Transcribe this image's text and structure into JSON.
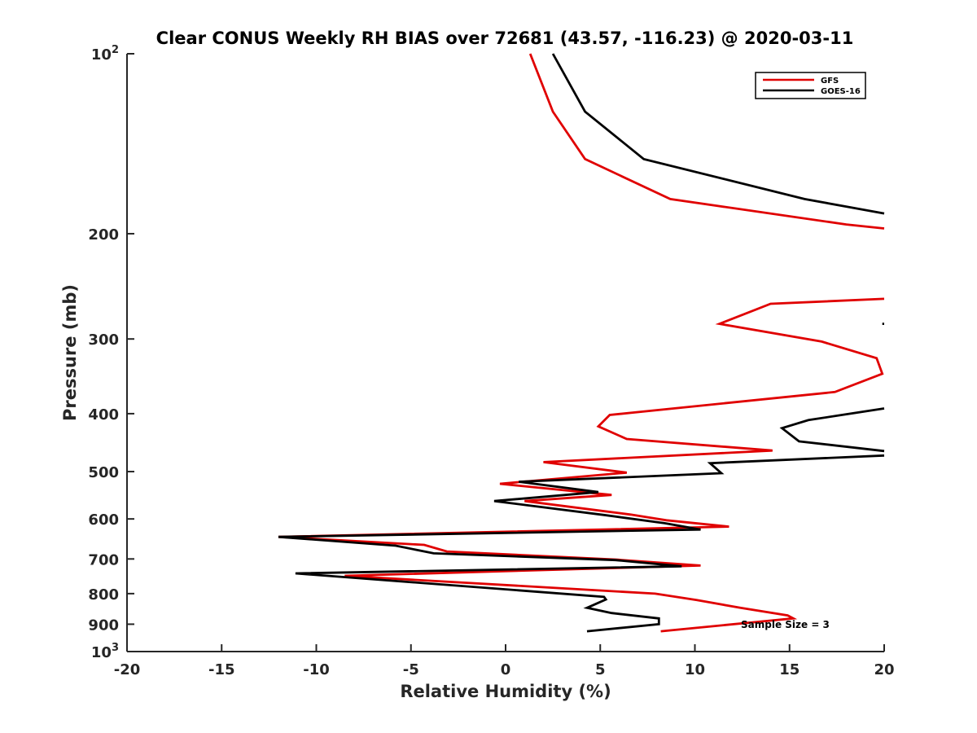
{
  "chart_data": {
    "type": "line",
    "title": "Clear CONUS Weekly RH BIAS over 72681 (43.57, -116.23) @ 2020-03-11",
    "xlabel": "Relative Humidity (%)",
    "ylabel": "Pressure (mb)",
    "xlim": [
      -20,
      20
    ],
    "ylim": [
      100,
      1000
    ],
    "y_scale": "log",
    "y_reversed": true,
    "x_ticks": [
      "-20",
      "-15",
      "-10",
      "-5",
      "0",
      "5",
      "10",
      "15",
      "20"
    ],
    "y_ticks": [
      {
        "value": 100,
        "base": "10",
        "exp": "2"
      },
      {
        "value": 200,
        "label": "200"
      },
      {
        "value": 300,
        "label": "300"
      },
      {
        "value": 400,
        "label": "400"
      },
      {
        "value": 500,
        "label": "500"
      },
      {
        "value": 600,
        "label": "600"
      },
      {
        "value": 700,
        "label": "700"
      },
      {
        "value": 800,
        "label": "800"
      },
      {
        "value": 900,
        "label": "900"
      },
      {
        "value": 1000,
        "base": "10",
        "exp": "3"
      }
    ],
    "grid": false,
    "legend_position": "top-right",
    "annotation": "Sample Size = 3",
    "series": [
      {
        "name": "GFS",
        "color": "#e00000",
        "segments": [
          [
            [
              1.3,
              100
            ],
            [
              2.5,
              125
            ],
            [
              4.2,
              150
            ],
            [
              8.7,
              175
            ],
            [
              18,
              193
            ],
            [
              20,
              196
            ]
          ],
          [
            [
              20,
              257
            ],
            [
              14,
              262
            ],
            [
              11.3,
              283
            ],
            [
              16.7,
              303
            ],
            [
              19.6,
              323
            ],
            [
              19.9,
              343
            ],
            [
              17.4,
              368
            ],
            [
              5.5,
              402
            ],
            [
              4.9,
              420
            ],
            [
              6.4,
              441
            ],
            [
              14.1,
              461
            ],
            [
              2,
              482
            ],
            [
              6.4,
              502
            ],
            [
              -0.3,
              524
            ],
            [
              5.6,
              547
            ],
            [
              1,
              560
            ],
            [
              6.6,
              590
            ],
            [
              8.5,
              603
            ],
            [
              11.8,
              618
            ],
            [
              -12,
              643
            ],
            [
              -4.3,
              663
            ],
            [
              -3.1,
              680
            ],
            [
              5.9,
              702
            ],
            [
              10.3,
              718
            ],
            [
              -8.5,
              747
            ],
            [
              7.9,
              800
            ],
            [
              10.1,
              820
            ],
            [
              12.4,
              845
            ],
            [
              14.9,
              870
            ],
            [
              15.2,
              880
            ],
            [
              8.2,
              925
            ]
          ]
        ]
      },
      {
        "name": "GOES-16",
        "color": "#000000",
        "segments": [
          [
            [
              2.5,
              100
            ],
            [
              4.2,
              125
            ],
            [
              7.3,
              150
            ],
            [
              15.8,
              175
            ],
            [
              20,
              185
            ]
          ],
          [
            [
              19.9,
              283
            ],
            [
              20,
              283
            ]
          ],
          [
            [
              20,
              392
            ],
            [
              16,
              410
            ],
            [
              14.6,
              423
            ],
            [
              15.5,
              445
            ],
            [
              20,
              462
            ]
          ],
          [
            [
              20,
              470
            ],
            [
              10.8,
              484
            ],
            [
              11.4,
              503
            ],
            [
              0.7,
              520
            ],
            [
              4.9,
              541
            ],
            [
              -0.6,
              560
            ],
            [
              5.2,
              591
            ],
            [
              8.4,
              610
            ],
            [
              10.3,
              625
            ],
            [
              -12,
              643
            ],
            [
              -5.8,
              665
            ],
            [
              -3.8,
              685
            ],
            [
              5.8,
              703
            ],
            [
              9.3,
              720
            ],
            [
              -11.1,
              740
            ],
            [
              5.2,
              810
            ],
            [
              5.3,
              818
            ],
            [
              4.3,
              845
            ],
            [
              5.6,
              862
            ],
            [
              8.1,
              880
            ],
            [
              8.1,
              900
            ],
            [
              4.3,
              925
            ]
          ]
        ]
      }
    ]
  }
}
